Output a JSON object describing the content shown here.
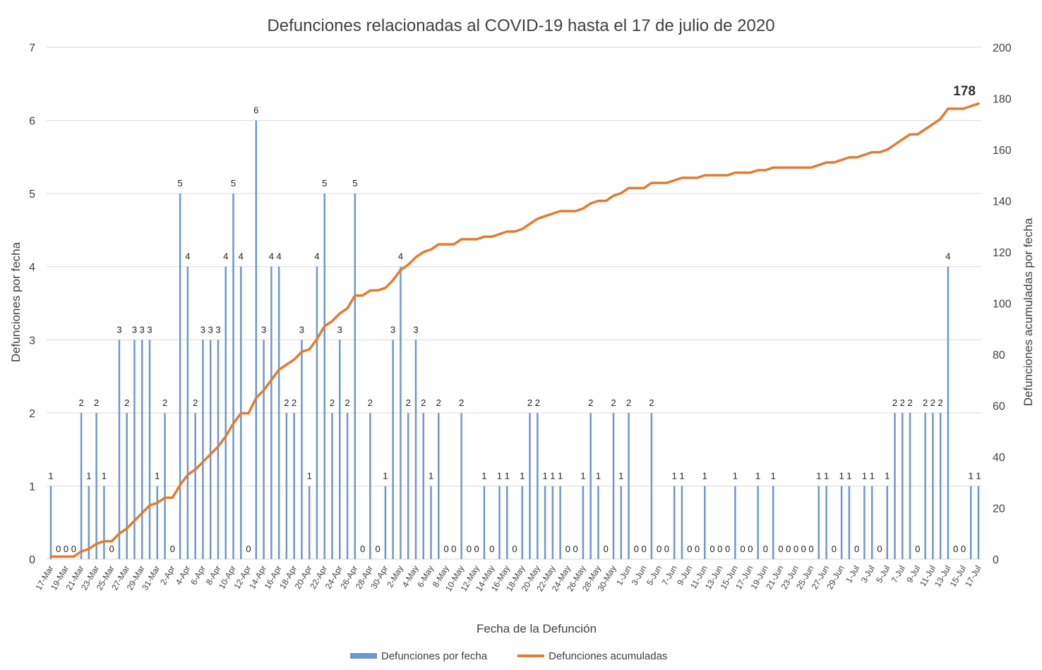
{
  "chart_data": {
    "type": "bar+line",
    "title": "Defunciones relacionadas al COVID-19 hasta el 17 de julio de 2020",
    "xlabel": "Fecha de la Defunción",
    "ylabel_left": "Defunciones por fecha",
    "ylabel_right": "Defunciones acumuladas por fecha",
    "ylim_left": [
      0,
      7
    ],
    "ylim_right": [
      0,
      200
    ],
    "yticks_left": [
      "0",
      "1",
      "2",
      "3",
      "4",
      "5",
      "6",
      "7"
    ],
    "yticks_right": [
      "0",
      "20",
      "40",
      "60",
      "80",
      "100",
      "120",
      "140",
      "160",
      "180",
      "200"
    ],
    "grid": true,
    "legend_position": "bottom",
    "colors": {
      "bars": "#6f97cf",
      "line": "#e07c30",
      "grid": "#d9d9d9"
    },
    "categories": [
      "17-Mar",
      "18-Mar",
      "19-Mar",
      "20-Mar",
      "21-Mar",
      "22-Mar",
      "23-Mar",
      "24-Mar",
      "25-Mar",
      "26-Mar",
      "27-Mar",
      "28-Mar",
      "29-Mar",
      "30-Mar",
      "31-Mar",
      "1-Apr",
      "2-Apr",
      "3-Apr",
      "4-Apr",
      "5-Apr",
      "6-Apr",
      "7-Apr",
      "8-Apr",
      "9-Apr",
      "10-Apr",
      "11-Apr",
      "12-Apr",
      "13-Apr",
      "14-Apr",
      "15-Apr",
      "16-Apr",
      "17-Apr",
      "18-Apr",
      "19-Apr",
      "20-Apr",
      "21-Apr",
      "22-Apr",
      "23-Apr",
      "24-Apr",
      "25-Apr",
      "26-Apr",
      "27-Apr",
      "28-Apr",
      "29-Apr",
      "30-Apr",
      "1-May",
      "2-May",
      "3-May",
      "4-May",
      "5-May",
      "6-May",
      "7-May",
      "8-May",
      "9-May",
      "10-May",
      "11-May",
      "12-May",
      "13-May",
      "14-May",
      "15-May",
      "16-May",
      "17-May",
      "18-May",
      "19-May",
      "20-May",
      "21-May",
      "22-May",
      "23-May",
      "24-May",
      "25-May",
      "26-May",
      "27-May",
      "28-May",
      "29-May",
      "30-May",
      "31-May",
      "1-Jun",
      "2-Jun",
      "3-Jun",
      "4-Jun",
      "5-Jun",
      "6-Jun",
      "7-Jun",
      "8-Jun",
      "9-Jun",
      "10-Jun",
      "11-Jun",
      "12-Jun",
      "13-Jun",
      "14-Jun",
      "15-Jun",
      "16-Jun",
      "17-Jun",
      "18-Jun",
      "19-Jun",
      "20-Jun",
      "21-Jun",
      "22-Jun",
      "23-Jun",
      "24-Jun",
      "25-Jun",
      "26-Jun",
      "27-Jun",
      "28-Jun",
      "29-Jun",
      "30-Jun",
      "1-Jul",
      "2-Jul",
      "3-Jul",
      "4-Jul",
      "5-Jul",
      "6-Jul",
      "7-Jul",
      "8-Jul",
      "9-Jul",
      "10-Jul",
      "11-Jul",
      "12-Jul",
      "13-Jul",
      "14-Jul",
      "15-Jul",
      "16-Jul",
      "17-Jul"
    ],
    "series": [
      {
        "name": "Defunciones por fecha",
        "type": "bar",
        "values": [
          1,
          0,
          0,
          0,
          2,
          1,
          2,
          1,
          0,
          3,
          2,
          3,
          3,
          3,
          1,
          2,
          0,
          5,
          4,
          2,
          3,
          3,
          3,
          4,
          5,
          4,
          0,
          6,
          3,
          4,
          4,
          2,
          2,
          3,
          1,
          4,
          5,
          2,
          3,
          2,
          5,
          0,
          2,
          0,
          1,
          3,
          4,
          2,
          3,
          2,
          1,
          2,
          0,
          0,
          2,
          0,
          0,
          1,
          0,
          1,
          1,
          0,
          1,
          2,
          2,
          1,
          1,
          1,
          0,
          0,
          1,
          2,
          1,
          0,
          2,
          1,
          2,
          0,
          0,
          2,
          0,
          0,
          1,
          1,
          0,
          0,
          1,
          0,
          0,
          0,
          1,
          0,
          0,
          1,
          0,
          1,
          0,
          0,
          0,
          0,
          0,
          1,
          1,
          0,
          1,
          1,
          0,
          1,
          1,
          0,
          1,
          2,
          2,
          2,
          0,
          2,
          2,
          2,
          4,
          0,
          0,
          1,
          1
        ]
      },
      {
        "name": "Defunciones acumuladas",
        "type": "line",
        "final_label": "178"
      }
    ]
  }
}
